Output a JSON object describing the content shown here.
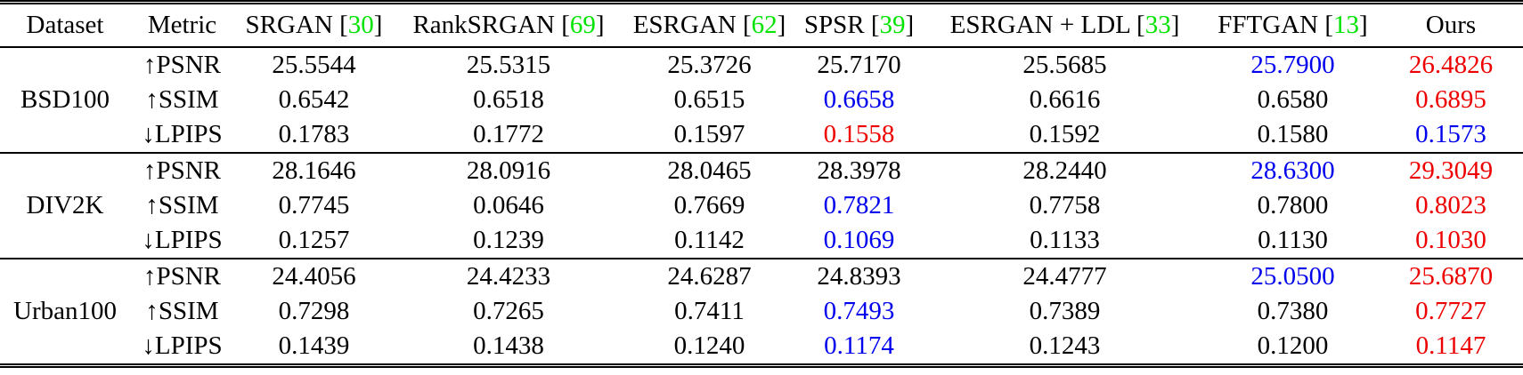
{
  "colors": {
    "black": "#000000",
    "blue": "#0000EE",
    "red": "#EE0000",
    "citation_green": "#00E400"
  },
  "table": {
    "cite_open": " [",
    "cite_close": "]",
    "columns": [
      {
        "key": "dataset",
        "label": "Dataset",
        "cite": null
      },
      {
        "key": "metric",
        "label": "Metric",
        "cite": null
      },
      {
        "key": "srgan",
        "label": "SRGAN",
        "cite": "30"
      },
      {
        "key": "ranksrgan",
        "label": "RankSRGAN",
        "cite": "69"
      },
      {
        "key": "esrgan",
        "label": "ESRGAN",
        "cite": "62"
      },
      {
        "key": "spsr",
        "label": "SPSR",
        "cite": "39"
      },
      {
        "key": "esrgan-ldl",
        "label": "ESRGAN + LDL",
        "cite": "33"
      },
      {
        "key": "fftgan",
        "label": "FFTGAN",
        "cite": "13"
      },
      {
        "key": "ours",
        "label": "Ours",
        "cite": null
      }
    ],
    "groups": [
      {
        "dataset": "BSD100",
        "rows": [
          {
            "metric": "↑PSNR",
            "values": [
              "25.5544",
              "25.5315",
              "25.3726",
              "25.7170",
              "25.5685",
              "25.7900",
              "26.4826"
            ],
            "colors": [
              "black",
              "black",
              "black",
              "black",
              "black",
              "blue",
              "red"
            ]
          },
          {
            "metric": "↑SSIM",
            "values": [
              "0.6542",
              "0.6518",
              "0.6515",
              "0.6658",
              "0.6616",
              "0.6580",
              "0.6895"
            ],
            "colors": [
              "black",
              "black",
              "black",
              "blue",
              "black",
              "black",
              "red"
            ]
          },
          {
            "metric": "↓LPIPS",
            "values": [
              "0.1783",
              "0.1772",
              "0.1597",
              "0.1558",
              "0.1592",
              "0.1580",
              "0.1573"
            ],
            "colors": [
              "black",
              "black",
              "black",
              "red",
              "black",
              "black",
              "blue"
            ]
          }
        ]
      },
      {
        "dataset": "DIV2K",
        "rows": [
          {
            "metric": "↑PSNR",
            "values": [
              "28.1646",
              "28.0916",
              "28.0465",
              "28.3978",
              "28.2440",
              "28.6300",
              "29.3049"
            ],
            "colors": [
              "black",
              "black",
              "black",
              "black",
              "black",
              "blue",
              "red"
            ]
          },
          {
            "metric": "↑SSIM",
            "values": [
              "0.7745",
              "0.0646",
              "0.7669",
              "0.7821",
              "0.7758",
              "0.7800",
              "0.8023"
            ],
            "colors": [
              "black",
              "black",
              "black",
              "blue",
              "black",
              "black",
              "red"
            ]
          },
          {
            "metric": "↓LPIPS",
            "values": [
              "0.1257",
              "0.1239",
              "0.1142",
              "0.1069",
              "0.1133",
              "0.1130",
              "0.1030"
            ],
            "colors": [
              "black",
              "black",
              "black",
              "blue",
              "black",
              "black",
              "red"
            ]
          }
        ]
      },
      {
        "dataset": "Urban100",
        "rows": [
          {
            "metric": "↑PSNR",
            "values": [
              "24.4056",
              "24.4233",
              "24.6287",
              "24.8393",
              "24.4777",
              "25.0500",
              "25.6870"
            ],
            "colors": [
              "black",
              "black",
              "black",
              "black",
              "black",
              "blue",
              "red"
            ]
          },
          {
            "metric": "↑SSIM",
            "values": [
              "0.7298",
              "0.7265",
              "0.7411",
              "0.7493",
              "0.7389",
              "0.7380",
              "0.7727"
            ],
            "colors": [
              "black",
              "black",
              "black",
              "blue",
              "black",
              "black",
              "red"
            ]
          },
          {
            "metric": "↓LPIPS",
            "values": [
              "0.1439",
              "0.1438",
              "0.1240",
              "0.1174",
              "0.1243",
              "0.1200",
              "0.1147"
            ],
            "colors": [
              "black",
              "black",
              "black",
              "blue",
              "black",
              "black",
              "red"
            ]
          }
        ]
      }
    ]
  }
}
